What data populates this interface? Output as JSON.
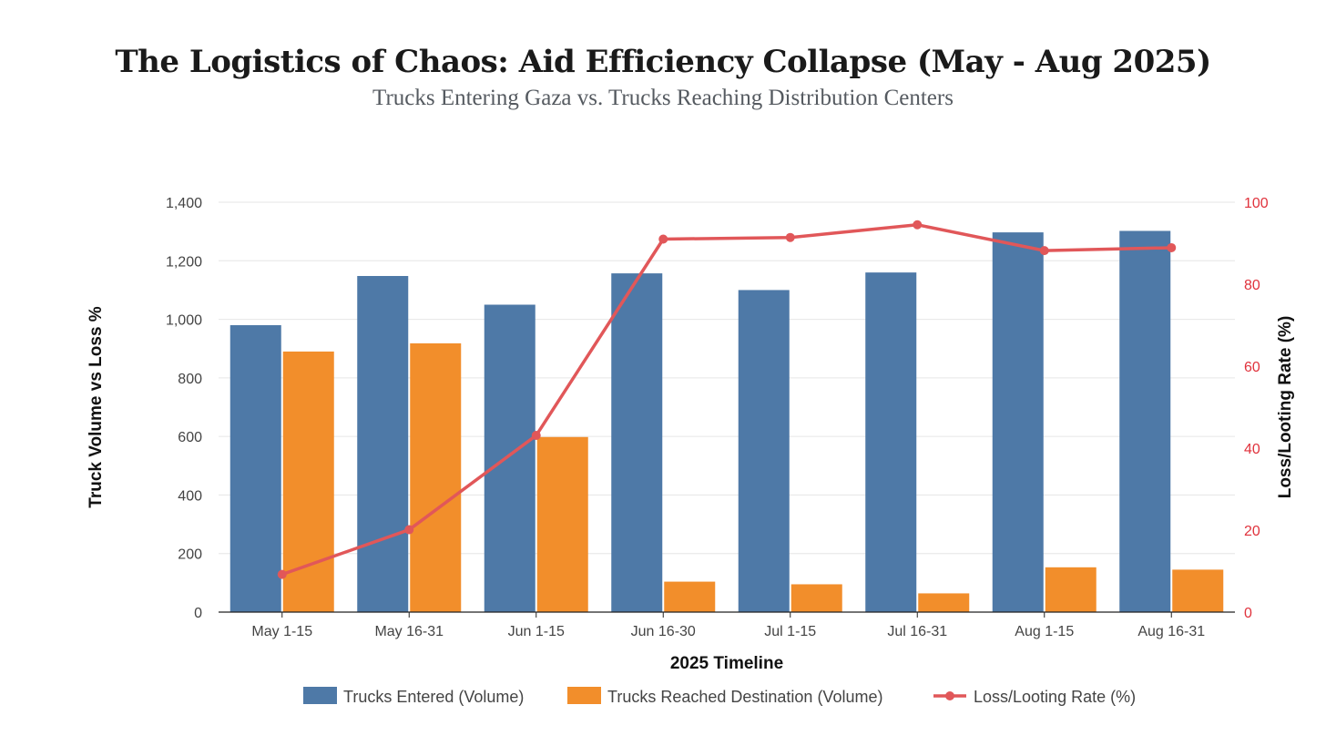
{
  "page": {
    "title": "The Logistics of Chaos: Aid Efficiency Collapse (May - Aug 2025)",
    "subtitle": "Trucks Entering Gaza vs. Trucks Reaching Distribution Centers"
  },
  "chart_data": {
    "type": "bar",
    "categories": [
      "May 1-15",
      "May 16-31",
      "Jun 1-15",
      "Jun 16-30",
      "Jul 1-15",
      "Jul 16-31",
      "Aug 1-15",
      "Aug 16-31"
    ],
    "series": [
      {
        "name": "Trucks Entered (Volume)",
        "type": "bar",
        "axis": "left",
        "color": "#4e79a7",
        "values": [
          980,
          1148,
          1050,
          1157,
          1100,
          1160,
          1297,
          1302
        ]
      },
      {
        "name": "Trucks Reached Destination (Volume)",
        "type": "bar",
        "axis": "left",
        "color": "#f28e2b",
        "values": [
          890,
          918,
          598,
          104,
          95,
          64,
          153,
          145
        ]
      },
      {
        "name": "Loss/Looting Rate (%)",
        "type": "line",
        "axis": "right",
        "color": "#e15759",
        "values": [
          9.2,
          20.1,
          43.1,
          91.0,
          91.4,
          94.5,
          88.2,
          88.9
        ]
      }
    ],
    "xlabel": "2025 Timeline",
    "ylabel": "Truck Volume vs Loss %",
    "y2label": "Loss/Looting Rate (%)",
    "ylim": [
      0,
      1400
    ],
    "yticks": [
      0,
      200,
      400,
      600,
      800,
      1000,
      1200,
      1400
    ],
    "y2lim": [
      0,
      100
    ],
    "y2ticks": [
      0,
      20,
      40,
      60,
      80,
      100
    ],
    "grid": true,
    "legend": "bottom"
  }
}
